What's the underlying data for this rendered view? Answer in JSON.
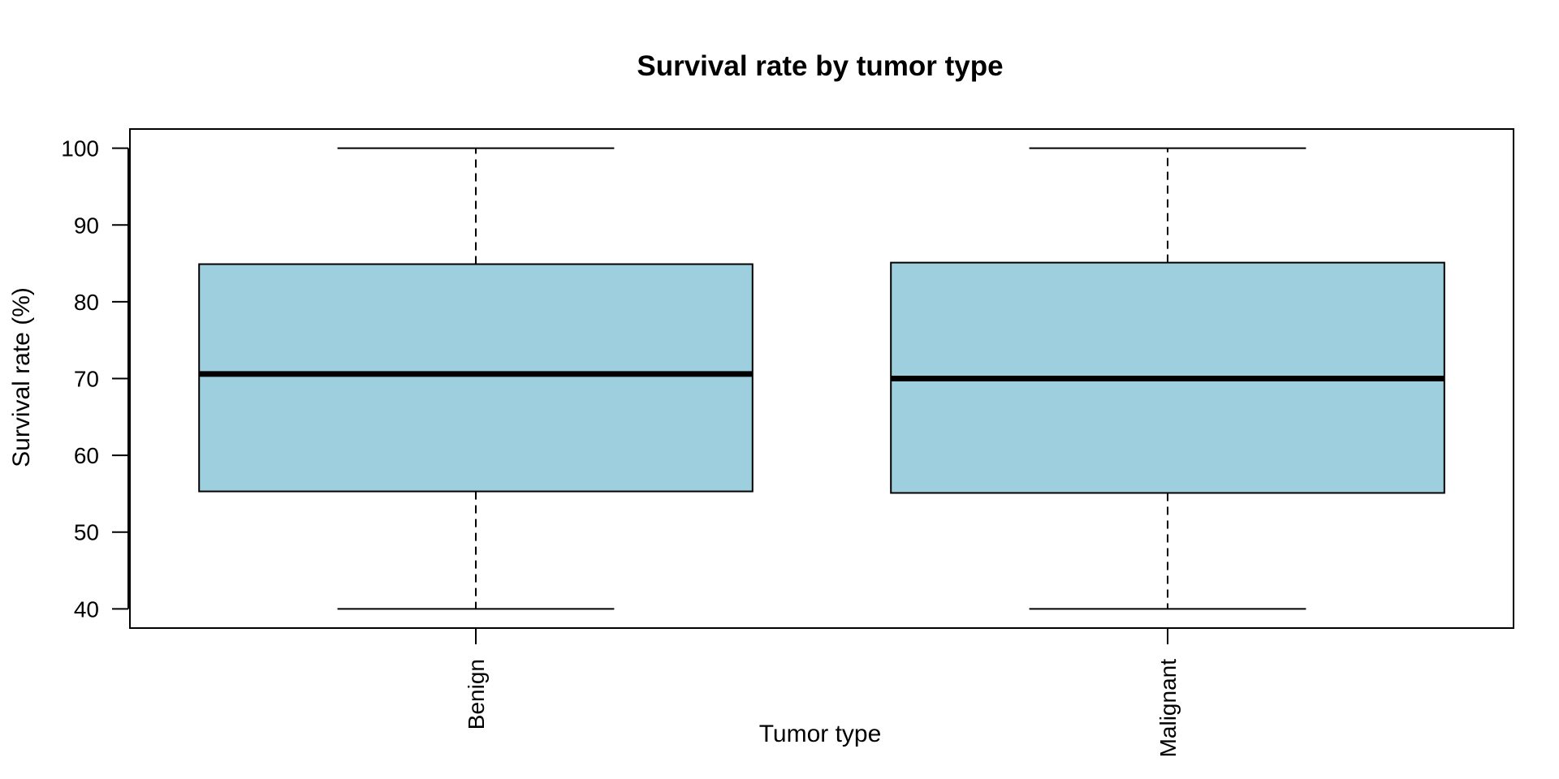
{
  "chart_data": {
    "type": "boxplot",
    "title": "Survival rate by tumor type",
    "xlabel": "Tumor type",
    "ylabel": "Survival rate (%)",
    "ylim": [
      37.5,
      102.5
    ],
    "yticks": [
      40,
      50,
      60,
      70,
      80,
      90,
      100
    ],
    "ytick_labels": [
      "40",
      "50",
      "60",
      "70",
      "80",
      "90",
      "100"
    ],
    "categories": [
      "Benign",
      "Malignant"
    ],
    "boxes": [
      {
        "category": "Benign",
        "min": 40,
        "q1": 55.3,
        "median": 70.6,
        "q3": 84.9,
        "max": 100
      },
      {
        "category": "Malignant",
        "min": 40,
        "q1": 55.1,
        "median": 70.0,
        "q3": 85.1,
        "max": 100
      }
    ],
    "box_color": "#9ecfdf",
    "grid": false,
    "legend": "none"
  }
}
